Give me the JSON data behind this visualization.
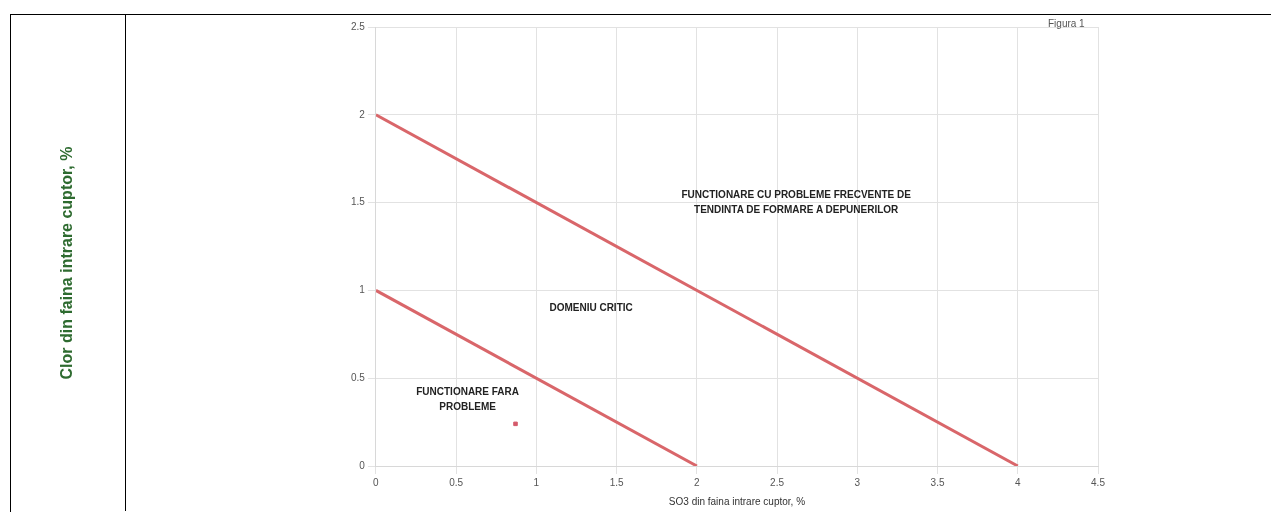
{
  "chart_data": {
    "type": "line",
    "xlabel": "SO3 din faina intrare cuptor, %",
    "series": [
      {
        "color": "#d9666a",
        "x": [
          0,
          4
        ],
        "values": [
          2,
          0
        ],
        "marker": "none"
      },
      {
        "color": "#d9666a",
        "x": [
          0,
          2
        ],
        "values": [
          1,
          0
        ],
        "marker": "none"
      },
      {
        "type": "scatter",
        "color": "#d45a6a",
        "x": [
          0.87
        ],
        "values": [
          0.24
        ],
        "marker": "square"
      }
    ],
    "xlim": [
      0,
      4.5
    ],
    "xticks": [
      0,
      0.5,
      1,
      1.5,
      2,
      2.5,
      3,
      3.5,
      4,
      4.5
    ],
    "ylim": [
      0,
      2.5
    ],
    "yticks": [
      0,
      0.5,
      1,
      1.5,
      2,
      2.5
    ],
    "grid": true,
    "legend": false,
    "annotations": [
      "Figura 1",
      "Clor din faina intrare cuptor, %",
      "FUNCTIONARE CU PROBLEME FRECVENTE DE TENDINTA DE FORMARE A DEPUNERILOR",
      "DOMENIU CRITIC",
      "FUNCTIONARE FARA PROBLEME"
    ]
  }
}
